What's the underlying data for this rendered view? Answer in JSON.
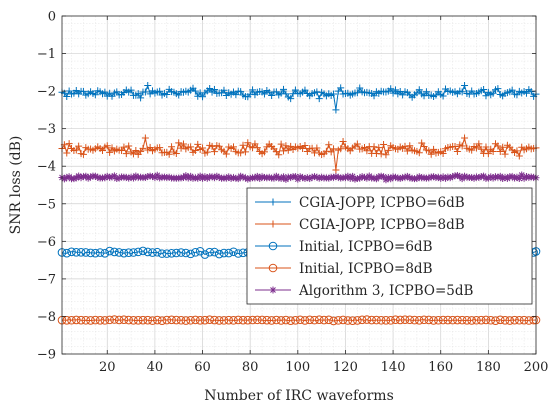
{
  "chart_data": {
    "type": "line",
    "title": "",
    "xlabel": "Number of IRC waveforms",
    "ylabel": "SNR loss (dB)",
    "xlim": [
      1,
      200
    ],
    "ylim": [
      -9,
      0
    ],
    "xticks": [
      20,
      40,
      60,
      80,
      100,
      120,
      140,
      160,
      180,
      200
    ],
    "yticks": [
      -9,
      -8,
      -7,
      -6,
      -5,
      -4,
      -3,
      -2,
      -1,
      0
    ],
    "grid": "major and minor",
    "legend_position": "lower-right",
    "series": [
      {
        "name": "CGIA-JOPP, ICPBO=6dB",
        "color": "#0072bd",
        "marker": "plus",
        "baseline": -2.05,
        "noise": 0.07,
        "anomalies": [
          {
            "x": 37,
            "y": -1.85
          },
          {
            "x": 116,
            "y": -2.5
          },
          {
            "x": 170,
            "y": -1.85
          }
        ]
      },
      {
        "name": "CGIA-JOPP, ICPBO=8dB",
        "color": "#d95319",
        "marker": "plus",
        "baseline": -3.55,
        "noise": 0.1,
        "anomalies": [
          {
            "x": 36,
            "y": -3.25
          },
          {
            "x": 116,
            "y": -4.1
          },
          {
            "x": 170,
            "y": -3.25
          }
        ]
      },
      {
        "name": "Initial, ICPBO=6dB",
        "color": "#0072bd",
        "marker": "circle",
        "baseline": -6.3,
        "noise": 0.025,
        "anomalies": []
      },
      {
        "name": "Initial, ICPBO=8dB",
        "color": "#d95319",
        "marker": "circle",
        "baseline": -8.1,
        "noise": 0.01,
        "anomalies": []
      },
      {
        "name": "Algorithm 3, ICPBO=5dB",
        "color": "#7e2f8e",
        "marker": "star",
        "baseline": -4.3,
        "noise": 0.03,
        "anomalies": []
      }
    ]
  }
}
